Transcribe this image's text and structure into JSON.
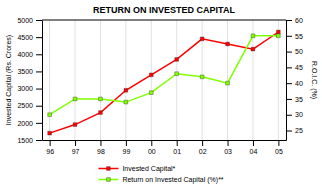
{
  "chart_data": {
    "type": "line",
    "title": "RETURN ON INVESTED CAPITAL",
    "categories": [
      "96",
      "97",
      "98",
      "99",
      "00",
      "01",
      "02",
      "03",
      "04",
      "05"
    ],
    "series": [
      {
        "name": "Invested Capital*",
        "color": "#ff0000",
        "marker": "square",
        "values": [
          1700,
          1950,
          2300,
          2950,
          3400,
          3850,
          4450,
          4300,
          4150,
          4650
        ]
      },
      {
        "name": "Return on Invested Capital (%)**",
        "color": "#80ff00",
        "marker": "square",
        "axis": "y2",
        "values": [
          30,
          35,
          35,
          34,
          37,
          43,
          42,
          40,
          55,
          55
        ]
      }
    ],
    "ylabel": "Invested Capital (Rs. Crores)",
    "y2label": "R.O.I.C. (%)",
    "ylim": [
      1500,
      5000
    ],
    "yticks": [
      1500,
      2000,
      2500,
      3000,
      3500,
      4000,
      4500,
      5000
    ],
    "y2lim": [
      22,
      60
    ],
    "y2ticks": [
      25,
      30,
      35,
      40,
      45,
      50,
      55,
      60
    ],
    "grid": "x",
    "legend": "bottom"
  }
}
